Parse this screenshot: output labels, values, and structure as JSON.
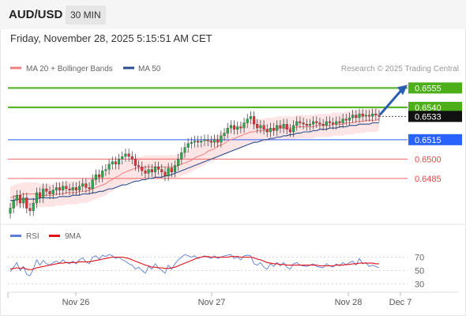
{
  "header": {
    "pair": "AUD/USD",
    "timeframe": "30 MIN"
  },
  "datetime": "Friday, November 28, 2025 5:15:51 AM CET",
  "legend": {
    "ma20_label": "MA 20 + Bollinger Bands",
    "ma50_label": "MA 50",
    "copyright": "Research © 2025 Trading Central",
    "ma20_color": "#f08080",
    "ma50_color": "#2a4f8f"
  },
  "rsi_legend": {
    "rsi_label": "RSI",
    "ma_label": "9MA",
    "rsi_color": "#5b7fd6",
    "ma_color": "#e0101a"
  },
  "colors": {
    "resistance": "#4caf1a",
    "pivot": "#2962ff",
    "support": "#ee4444",
    "current": "#111111",
    "up": "#2aa84a",
    "down": "#e03030",
    "arrow": "#2a5db0"
  },
  "chart_data": [
    {
      "type": "candlestick",
      "title": "",
      "x_ticks": [
        "Nov 26",
        "Nov 27",
        "Nov 28",
        "Dec 7"
      ],
      "ylim": [
        0.6455,
        0.6565
      ],
      "levels": [
        {
          "value": 0.6555,
          "label": "0.6555",
          "kind": "resistance"
        },
        {
          "value": 0.654,
          "label": "0.6540",
          "kind": "resistance"
        },
        {
          "value": 0.6533,
          "label": "0.6533",
          "kind": "current"
        },
        {
          "value": 0.6515,
          "label": "0.6515",
          "kind": "pivot"
        },
        {
          "value": 0.65,
          "label": "0.6500",
          "kind": "support"
        },
        {
          "value": 0.6485,
          "label": "0.6485",
          "kind": "support"
        }
      ],
      "close": [
        0.6462,
        0.6468,
        0.6472,
        0.6466,
        0.647,
        0.6462,
        0.646,
        0.6466,
        0.6474,
        0.647,
        0.6477,
        0.6475,
        0.6473,
        0.6476,
        0.6478,
        0.6476,
        0.6479,
        0.6477,
        0.6476,
        0.6478,
        0.6476,
        0.6479,
        0.6481,
        0.6478,
        0.6477,
        0.6484,
        0.6488,
        0.6486,
        0.6491,
        0.6492,
        0.6496,
        0.6498,
        0.6496,
        0.65,
        0.6502,
        0.6504,
        0.6502,
        0.65,
        0.6495,
        0.6494,
        0.6491,
        0.6489,
        0.6492,
        0.649,
        0.6494,
        0.6492,
        0.649,
        0.6487,
        0.6493,
        0.649,
        0.6495,
        0.65,
        0.6505,
        0.6509,
        0.6512,
        0.6513,
        0.6514,
        0.6513,
        0.6514,
        0.6515,
        0.6514,
        0.6513,
        0.6515,
        0.6513,
        0.6518,
        0.652,
        0.6524,
        0.6526,
        0.6523,
        0.6525,
        0.6524,
        0.6528,
        0.6531,
        0.6533,
        0.6527,
        0.6524,
        0.6526,
        0.6523,
        0.6521,
        0.6524,
        0.6522,
        0.6526,
        0.6524,
        0.6527,
        0.6523,
        0.6521,
        0.6526,
        0.6529,
        0.6528,
        0.6527,
        0.6526,
        0.6527,
        0.6529,
        0.6528,
        0.6527,
        0.6526,
        0.6529,
        0.6528,
        0.6527,
        0.6529,
        0.6528,
        0.6531,
        0.653,
        0.6532,
        0.6534,
        0.6532,
        0.6535,
        0.6533,
        0.6534,
        0.6533,
        0.6535,
        0.6534,
        0.6533
      ],
      "ma20": [
        0.647,
        0.6471,
        0.6472,
        0.6472,
        0.6473,
        0.6473,
        0.6473,
        0.6473,
        0.6473,
        0.6472,
        0.6472,
        0.6472,
        0.6472,
        0.6472,
        0.6473,
        0.6473,
        0.6473,
        0.6474,
        0.6474,
        0.6474,
        0.6474,
        0.6475,
        0.6475,
        0.6475,
        0.6476,
        0.6477,
        0.6478,
        0.6479,
        0.648,
        0.6481,
        0.6483,
        0.6484,
        0.6486,
        0.6487,
        0.6489,
        0.649,
        0.6491,
        0.6492,
        0.6493,
        0.6493,
        0.6493,
        0.6494,
        0.6494,
        0.6494,
        0.6494,
        0.6494,
        0.6494,
        0.6494,
        0.6494,
        0.6494,
        0.6494,
        0.6495,
        0.6496,
        0.6497,
        0.6498,
        0.6499,
        0.6501,
        0.6502,
        0.6503,
        0.6504,
        0.6506,
        0.6507,
        0.6508,
        0.651,
        0.6511,
        0.6512,
        0.6514,
        0.6515,
        0.6516,
        0.6517,
        0.6518,
        0.6519,
        0.652,
        0.6521,
        0.6521,
        0.6522,
        0.6522,
        0.6522,
        0.6523,
        0.6523,
        0.6523,
        0.6524,
        0.6524,
        0.6524,
        0.6524,
        0.6524,
        0.6524,
        0.6525,
        0.6525,
        0.6525,
        0.6525,
        0.6525,
        0.6525,
        0.6526,
        0.6526,
        0.6526,
        0.6526,
        0.6526,
        0.6527,
        0.6527,
        0.6527,
        0.6527,
        0.6528,
        0.6528,
        0.6528,
        0.6529,
        0.6529,
        0.6529,
        0.653,
        0.653,
        0.653,
        0.653,
        0.6531
      ],
      "ma50": [
        0.6468,
        0.6468,
        0.6469,
        0.6469,
        0.6469,
        0.6469,
        0.6469,
        0.6469,
        0.6469,
        0.647,
        0.647,
        0.647,
        0.647,
        0.647,
        0.647,
        0.6471,
        0.6471,
        0.6471,
        0.6471,
        0.6472,
        0.6472,
        0.6472,
        0.6473,
        0.6473,
        0.6473,
        0.6474,
        0.6474,
        0.6475,
        0.6475,
        0.6476,
        0.6477,
        0.6477,
        0.6478,
        0.6479,
        0.648,
        0.648,
        0.6481,
        0.6482,
        0.6483,
        0.6483,
        0.6484,
        0.6484,
        0.6485,
        0.6485,
        0.6486,
        0.6486,
        0.6486,
        0.6487,
        0.6487,
        0.6488,
        0.6489,
        0.649,
        0.6491,
        0.6492,
        0.6493,
        0.6494,
        0.6495,
        0.6496,
        0.6497,
        0.6498,
        0.6499,
        0.65,
        0.6501,
        0.6502,
        0.6503,
        0.6504,
        0.6505,
        0.6506,
        0.6507,
        0.6508,
        0.6509,
        0.651,
        0.6511,
        0.6512,
        0.6513,
        0.6513,
        0.6514,
        0.6515,
        0.6515,
        0.6516,
        0.6516,
        0.6517,
        0.6517,
        0.6518,
        0.6518,
        0.6519,
        0.6519,
        0.652,
        0.652,
        0.6521,
        0.6521,
        0.6521,
        0.6522,
        0.6522,
        0.6523,
        0.6523,
        0.6523,
        0.6524,
        0.6524,
        0.6524,
        0.6525,
        0.6525,
        0.6525,
        0.6526,
        0.6526,
        0.6526,
        0.6527,
        0.6527,
        0.6527,
        0.6527,
        0.6528,
        0.6528,
        0.6528
      ],
      "bollinger_width": 0.0009,
      "target_arrow": {
        "from": 0.6535,
        "to": 0.6555
      }
    },
    {
      "type": "line",
      "title": "",
      "series": [
        {
          "name": "RSI",
          "values": [
            48,
            55,
            62,
            50,
            56,
            44,
            42,
            52,
            66,
            58,
            65,
            60,
            58,
            62,
            64,
            61,
            66,
            62,
            60,
            64,
            60,
            66,
            69,
            63,
            60,
            70,
            72,
            67,
            73,
            71,
            74,
            72,
            68,
            70,
            66,
            64,
            60,
            58,
            52,
            55,
            50,
            46,
            56,
            52,
            60,
            54,
            50,
            46,
            58,
            52,
            60,
            66,
            70,
            74,
            72,
            70,
            72,
            68,
            70,
            72,
            70,
            68,
            72,
            68,
            70,
            72,
            73,
            74,
            68,
            70,
            66,
            72,
            73,
            72,
            60,
            58,
            62,
            55,
            52,
            60,
            56,
            62,
            57,
            62,
            55,
            52,
            60,
            62,
            58,
            57,
            56,
            58,
            60,
            56,
            55,
            54,
            60,
            57,
            55,
            60,
            57,
            62,
            58,
            62,
            64,
            58,
            68,
            60,
            62,
            56,
            58,
            56,
            54
          ]
        },
        {
          "name": "9MA",
          "values": [
            52,
            53,
            54,
            53,
            54,
            52,
            51,
            52,
            54,
            55,
            56,
            57,
            58,
            59,
            60,
            61,
            61,
            62,
            62,
            62,
            62,
            63,
            63,
            63,
            63,
            64,
            65,
            66,
            67,
            68,
            69,
            70,
            70,
            70,
            70,
            69,
            68,
            66,
            64,
            62,
            60,
            58,
            57,
            55,
            55,
            54,
            54,
            53,
            53,
            54,
            55,
            57,
            59,
            61,
            63,
            65,
            67,
            69,
            70,
            71,
            71,
            70,
            70,
            70,
            70,
            70,
            70,
            71,
            71,
            71,
            70,
            70,
            70,
            70,
            69,
            67,
            66,
            64,
            62,
            61,
            60,
            60,
            59,
            59,
            58,
            58,
            58,
            58,
            58,
            58,
            58,
            58,
            58,
            58,
            57,
            57,
            57,
            57,
            57,
            58,
            58,
            58,
            59,
            59,
            60,
            60,
            61,
            61,
            61,
            61,
            61,
            60,
            60
          ]
        }
      ],
      "y_ticks": [
        70,
        50,
        30
      ],
      "ylim": [
        22,
        86
      ]
    }
  ]
}
